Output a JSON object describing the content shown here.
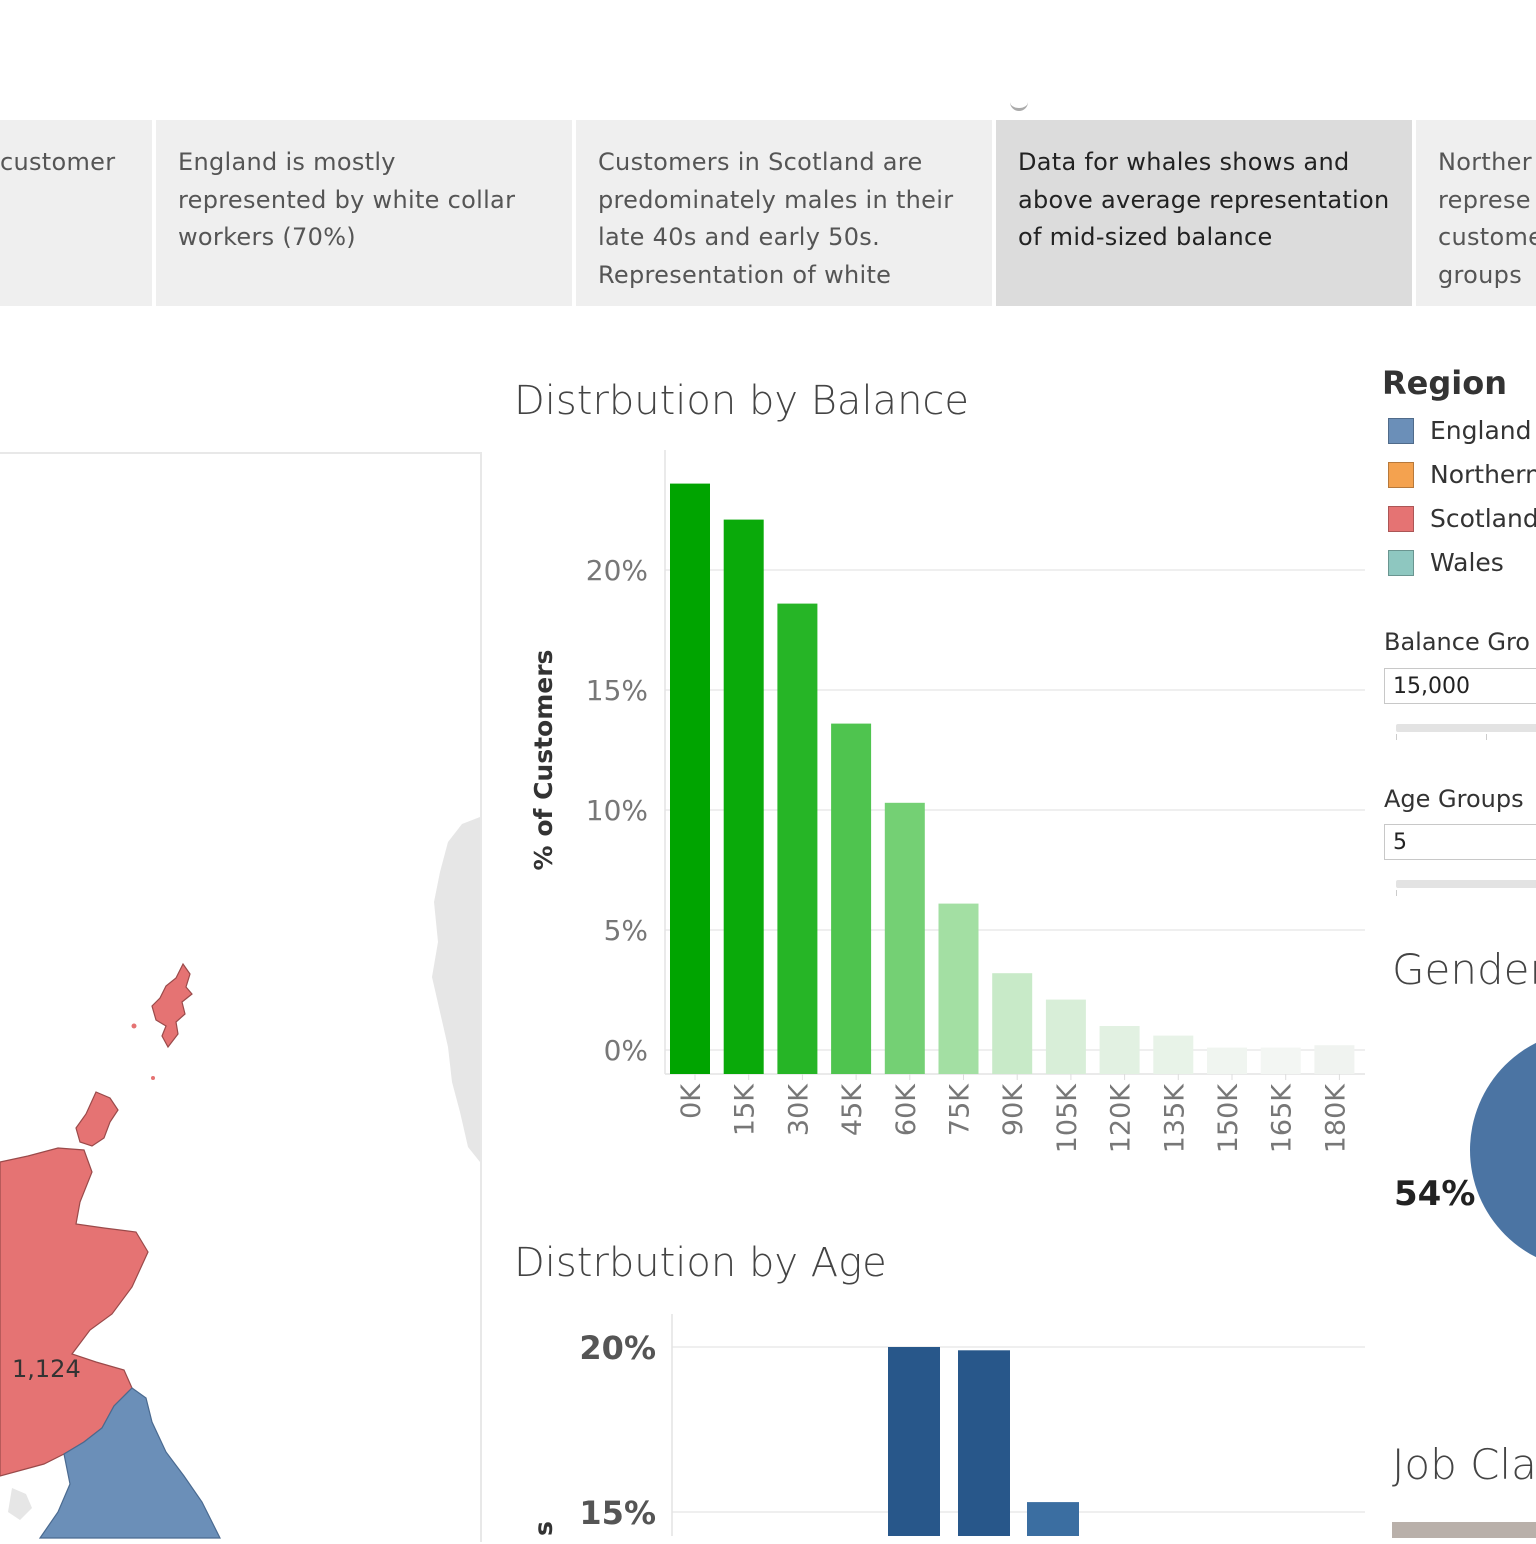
{
  "story": {
    "points": [
      {
        "text": "customer",
        "active": false
      },
      {
        "text": "England is mostly represented by white collar workers (70%)",
        "active": false
      },
      {
        "text": "Customers in Scotland are predominately males in their late 40s and early 50s. Representation of white",
        "active": false
      },
      {
        "text": "Data for whales shows and above average representation of mid-sized balance",
        "active": true
      },
      {
        "text": "Norther represe custome groups",
        "active": false
      }
    ]
  },
  "map": {
    "label": "1,124"
  },
  "balance_chart": {
    "title": "Distrbution by Balance",
    "ylabel": "% of Customers",
    "y_ticks": [
      "20%",
      "15%",
      "10%",
      "5%",
      "0%"
    ],
    "bar_colors": [
      "#00a400",
      "#0aaa0a",
      "#26b526",
      "#4fc44f",
      "#74d074",
      "#a3dfa3",
      "#c8eac8",
      "#d8eed8",
      "#e2f1e2",
      "#e8f3e8",
      "#f0f5f0",
      "#f3f6f3",
      "#f0f3f0"
    ],
    "chart_data": {
      "type": "bar",
      "categories": [
        "0K",
        "15K",
        "30K",
        "45K",
        "60K",
        "75K",
        "90K",
        "105K",
        "120K",
        "135K",
        "150K",
        "165K",
        "180K"
      ],
      "values": [
        23.6,
        22.1,
        18.6,
        13.6,
        10.3,
        6.1,
        3.2,
        2.1,
        1.0,
        0.6,
        0.1,
        0.1,
        0.2
      ],
      "title": "Distrbution by Balance",
      "xlabel": "",
      "ylabel": "% of Customers",
      "ylim": [
        -1,
        25
      ]
    }
  },
  "age_chart": {
    "title": "Distrbution by Age",
    "y_ticks": [
      "20%",
      "15%"
    ],
    "ylabel_fragment": "s",
    "bar_colors": [
      "#28578a",
      "#28578a",
      "#3b6ea1"
    ],
    "chart_data": {
      "type": "bar",
      "categories": [
        "",
        "",
        ""
      ],
      "values": [
        20.0,
        19.9,
        15.3
      ],
      "title": "Distrbution by Age",
      "xlabel": "",
      "ylabel": "",
      "ylim": [
        13,
        21
      ]
    }
  },
  "legend": {
    "title": "Region",
    "items": [
      {
        "label": "England",
        "color": "#6b8fb8"
      },
      {
        "label": "Northern",
        "color": "#f4a24f"
      },
      {
        "label": "Scotland",
        "color": "#e57373"
      },
      {
        "label": "Wales",
        "color": "#8ec7c0"
      }
    ]
  },
  "filters": {
    "balance_label": "Balance Gro",
    "balance_value": "15,000",
    "age_label": "Age Groups",
    "age_value": "5"
  },
  "gender": {
    "title": "Gender",
    "pie_label": "54%",
    "pie_color": "#4b74a3"
  },
  "job": {
    "title": "Job Cla"
  }
}
